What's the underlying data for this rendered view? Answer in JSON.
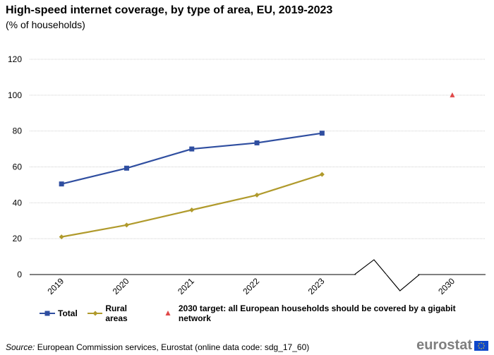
{
  "title": "High-speed internet coverage, by type of area, EU, 2019-2023",
  "subtitle": "(% of households)",
  "source_label": "Source:",
  "source_text": "European Commission services, Eurostat (online data code: sdg_17_60)",
  "logo_text": "eurostat",
  "chart_data": {
    "type": "line",
    "title": "High-speed internet coverage, by type of area, EU, 2019-2023",
    "ylabel": "% of households",
    "xlabel": "",
    "categories": [
      "2019",
      "2020",
      "2021",
      "2022",
      "2023",
      "",
      "2030"
    ],
    "y_ticks": [
      0,
      20,
      40,
      60,
      80,
      100,
      120
    ],
    "ylim": [
      0,
      120
    ],
    "grid": true,
    "legend_position": "bottom",
    "series": [
      {
        "name": "Total",
        "color": "#2f4ea0",
        "marker": "square",
        "values": [
          50.5,
          59.3,
          70.0,
          73.4,
          78.8,
          null,
          null
        ]
      },
      {
        "name": "Rural areas",
        "color": "#b09a2c",
        "marker": "diamond",
        "values": [
          21.0,
          27.6,
          36.0,
          44.3,
          55.8,
          null,
          null
        ]
      },
      {
        "name": "2030 target: all European households should be covered by a gigabit network",
        "color": "#e04848",
        "marker": "triangle",
        "values": [
          null,
          null,
          null,
          null,
          null,
          null,
          100
        ]
      }
    ]
  }
}
